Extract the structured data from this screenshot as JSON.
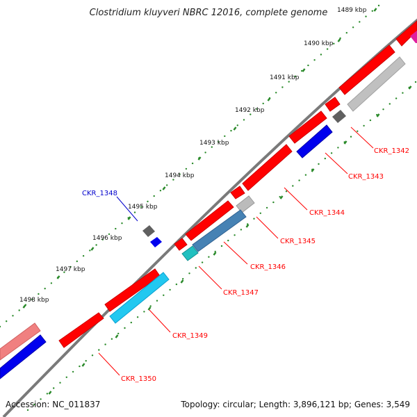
{
  "title": "Clostridium kluyveri NBRC 12016, complete genome",
  "ticks": [
    "1489 kbp",
    "1490 kbp",
    "1491 kbp",
    "1492 kbp",
    "1493 kbp",
    "1494 kbp",
    "1495 kbp",
    "1496 kbp",
    "1497 kbp",
    "1498 kbp"
  ],
  "genes": [
    {
      "name": "CKR_1342",
      "color": "#ff0000"
    },
    {
      "name": "CKR_1343",
      "color": "#ff0000"
    },
    {
      "name": "CKR_1344",
      "color": "#ff0000"
    },
    {
      "name": "CKR_1345",
      "color": "#ff0000"
    },
    {
      "name": "CKR_1346",
      "color": "#ff0000"
    },
    {
      "name": "CKR_1347",
      "color": "#ff0000"
    },
    {
      "name": "CKR_1348",
      "color": "#0000cc"
    },
    {
      "name": "CKR_1349",
      "color": "#ff0000"
    },
    {
      "name": "CKR_1350",
      "color": "#ff0000"
    }
  ],
  "footer": {
    "accession": "Accession: NC_011837",
    "summary": "Topology: circular; Length: 3,896,121 bp; Genes: 3,549"
  },
  "colors": {
    "backbone": "#808080",
    "tick_dots": "#2a8a2a",
    "cds_forward": "#ff0000",
    "cds_reverse": "#0000ee",
    "hit_gray": "#bbbbbb",
    "hit_steel": "#4682b4",
    "hit_cyan": "#22c8f0",
    "hit_teal": "#20c0c0",
    "hit_magenta": "#e020a0",
    "hit_pink": "#f08080"
  }
}
